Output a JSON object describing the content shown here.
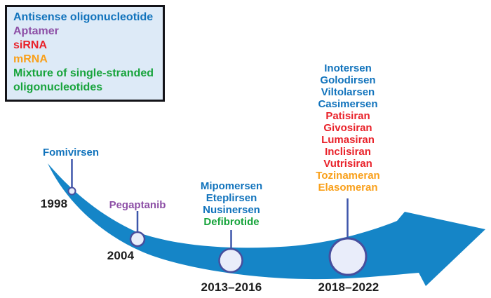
{
  "colors": {
    "blue": "#1173bc",
    "purple": "#8d4fa6",
    "red": "#e9222a",
    "orange": "#f9a01b",
    "green": "#18a43c",
    "year_text": "#1c1c1c",
    "arrow": "#1585c7",
    "marker_fill": "#e9edfa",
    "marker_stroke": "#474e9d",
    "connector": "#3d56aa",
    "legend_bg": "#ddeaf7",
    "legend_border": "#131318"
  },
  "legend": {
    "items": [
      {
        "label": "Antisense oligonucleotide",
        "color": "blue"
      },
      {
        "label": "Aptamer",
        "color": "purple"
      },
      {
        "label": "siRNA",
        "color": "red"
      },
      {
        "label": "mRNA",
        "color": "orange"
      },
      {
        "label": "Mixture of single-stranded oligonucleotides",
        "color": "green"
      }
    ]
  },
  "timeline": {
    "milestones": [
      {
        "year": "1998",
        "drugs": [
          {
            "name": "Fomivirsen",
            "color": "blue"
          }
        ]
      },
      {
        "year": "2004",
        "drugs": [
          {
            "name": "Pegaptanib",
            "color": "purple"
          }
        ]
      },
      {
        "year": "2013–2016",
        "drugs": [
          {
            "name": "Mipomersen",
            "color": "blue"
          },
          {
            "name": "Eteplirsen",
            "color": "blue"
          },
          {
            "name": "Nusinersen",
            "color": "blue"
          },
          {
            "name": "Defibrotide",
            "color": "green"
          }
        ]
      },
      {
        "year": "2018–2022",
        "drugs": [
          {
            "name": "Inotersen",
            "color": "blue"
          },
          {
            "name": "Golodirsen",
            "color": "blue"
          },
          {
            "name": "Viltolarsen",
            "color": "blue"
          },
          {
            "name": "Casimersen",
            "color": "blue"
          },
          {
            "name": "Patisiran",
            "color": "red"
          },
          {
            "name": "Givosiran",
            "color": "red"
          },
          {
            "name": "Lumasiran",
            "color": "red"
          },
          {
            "name": "Inclisiran",
            "color": "red"
          },
          {
            "name": "Vutrisiran",
            "color": "red"
          },
          {
            "name": "Tozinameran",
            "color": "orange"
          },
          {
            "name": "Elasomeran",
            "color": "orange"
          }
        ]
      }
    ]
  }
}
